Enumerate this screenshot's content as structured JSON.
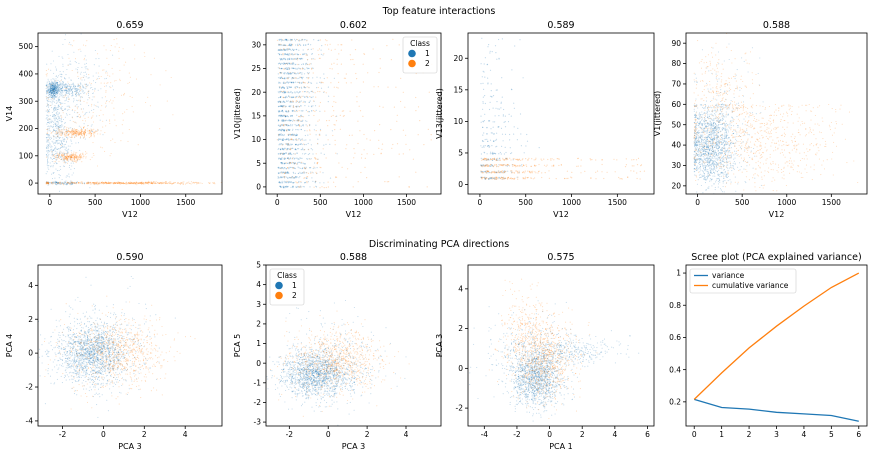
{
  "figure": {
    "row_titles": [
      "Top feature interactions",
      "Discriminating PCA directions"
    ]
  },
  "colors": {
    "class1": "#1f77b4",
    "class2": "#ff7f0e"
  },
  "chart_data": [
    {
      "type": "scatter",
      "title": "0.659",
      "xlabel": "V12",
      "ylabel": "V14",
      "xlim": [
        -130,
        1900
      ],
      "ylim": [
        -40,
        550
      ],
      "xticks": [
        0,
        500,
        1000,
        1500
      ],
      "yticks": [
        0,
        100,
        200,
        300,
        400,
        500
      ],
      "series": [
        {
          "name": "1",
          "cloud": [
            {
              "cx": 40,
              "cy": 345,
              "sx": 30,
              "sy": 15,
              "n": 300
            },
            {
              "cx": 180,
              "cy": 345,
              "sx": 140,
              "sy": 15,
              "n": 280
            },
            {
              "cx": 60,
              "cy": 250,
              "sx": 60,
              "sy": 80,
              "n": 260
            },
            {
              "cx": 100,
              "cy": 130,
              "sx": 100,
              "sy": 60,
              "n": 260
            },
            {
              "cx": 300,
              "cy": 330,
              "sx": 200,
              "sy": 90,
              "n": 220
            },
            {
              "cx": 150,
              "cy": 0,
              "sx": 150,
              "sy": 3,
              "n": 120
            }
          ]
        },
        {
          "name": "2",
          "cloud": [
            {
              "cx": 300,
              "cy": 185,
              "sx": 120,
              "sy": 8,
              "n": 280
            },
            {
              "cx": 230,
              "cy": 95,
              "sx": 90,
              "sy": 8,
              "n": 240
            },
            {
              "cx": 800,
              "cy": 0,
              "sx": 500,
              "sy": 2,
              "n": 520
            },
            {
              "cx": 500,
              "cy": 330,
              "sx": 350,
              "sy": 110,
              "n": 240
            }
          ]
        }
      ]
    },
    {
      "type": "scatter",
      "title": "0.602",
      "xlabel": "V12",
      "ylabel": "V10(jittered)",
      "xlim": [
        -130,
        1900
      ],
      "ylim": [
        -1.5,
        32.5
      ],
      "xticks": [
        0,
        500,
        1000,
        1500
      ],
      "yticks": [
        0,
        5,
        10,
        15,
        20,
        25,
        30
      ],
      "legend": {
        "title": "Class",
        "entries": [
          "1",
          "2"
        ],
        "position": "upper right"
      },
      "series": [
        {
          "name": "1",
          "stripes": {
            "y_min": 0,
            "y_max": 31,
            "step": 1,
            "x_center": 180,
            "x_spread": 200,
            "n_per": 40
          }
        },
        {
          "name": "2",
          "stripes": {
            "y_min": 0,
            "y_max": 31,
            "step": 1,
            "x_center": 700,
            "x_spread": 450,
            "n_per": 14
          }
        }
      ]
    },
    {
      "type": "scatter",
      "title": "0.589",
      "xlabel": "V12",
      "ylabel": "V13(jittered)",
      "xlim": [
        -130,
        1900
      ],
      "ylim": [
        -1.5,
        24
      ],
      "xticks": [
        0,
        500,
        1000,
        1500
      ],
      "yticks": [
        0,
        5,
        10,
        15,
        20
      ],
      "series": [
        {
          "name": "1",
          "stripes": {
            "y_min": 1,
            "y_max": 23,
            "step": 1,
            "x_center": 150,
            "x_spread": 180,
            "n_per": 38,
            "decay": 0.13
          }
        },
        {
          "name": "2",
          "stripes": {
            "y_min": 1,
            "y_max": 4,
            "step": 1,
            "x_center": 450,
            "x_spread": 380,
            "n_per": 90
          }
        }
      ]
    },
    {
      "type": "scatter",
      "title": "0.588",
      "xlabel": "V12",
      "ylabel": "V1(jittered)",
      "xlim": [
        -130,
        1900
      ],
      "ylim": [
        16,
        95
      ],
      "xticks": [
        0,
        500,
        1000,
        1500
      ],
      "yticks": [
        20,
        30,
        40,
        50,
        60,
        70,
        80,
        90
      ],
      "series": [
        {
          "name": "1",
          "cloud": [
            {
              "cx": 150,
              "cy": 40,
              "sx": 130,
              "sy": 10,
              "n": 1300,
              "ymax": 60
            },
            {
              "cx": 300,
              "cy": 55,
              "sx": 200,
              "sy": 15,
              "n": 200
            }
          ]
        },
        {
          "name": "2",
          "cloud": [
            {
              "cx": 700,
              "cy": 42,
              "sx": 450,
              "sy": 11,
              "n": 700,
              "ymax": 60
            },
            {
              "cx": 250,
              "cy": 65,
              "sx": 180,
              "sy": 14,
              "n": 250
            }
          ]
        }
      ]
    },
    {
      "type": "scatter",
      "title": "0.590",
      "xlabel": "PCA 3",
      "ylabel": "PCA 4",
      "xlim": [
        -3.2,
        5.8
      ],
      "ylim": [
        -4.3,
        5.2
      ],
      "xticks": [
        -2,
        0,
        2,
        4
      ],
      "yticks": [
        -4,
        -2,
        0,
        2,
        4
      ],
      "series": [
        {
          "name": "1",
          "cloud": [
            {
              "cx": -0.6,
              "cy": -0.1,
              "sx": 0.85,
              "sy": 0.85,
              "n": 1400
            },
            {
              "cx": 0.0,
              "cy": 0.5,
              "sx": 1.2,
              "sy": 1.5,
              "n": 300
            }
          ]
        },
        {
          "name": "2",
          "cloud": [
            {
              "cx": 0.6,
              "cy": 0.0,
              "sx": 1.2,
              "sy": 1.1,
              "n": 800
            }
          ]
        }
      ]
    },
    {
      "type": "scatter",
      "title": "0.588",
      "xlabel": "PCA 3",
      "ylabel": "PCA 5",
      "xlim": [
        -3.2,
        5.8
      ],
      "ylim": [
        -3.2,
        5.0
      ],
      "xticks": [
        -2,
        0,
        2,
        4
      ],
      "yticks": [
        -3,
        -2,
        -1,
        0,
        1,
        2,
        3,
        4,
        5
      ],
      "legend": {
        "title": "Class",
        "entries": [
          "1",
          "2"
        ],
        "position": "upper left"
      },
      "series": [
        {
          "name": "1",
          "cloud": [
            {
              "cx": -0.6,
              "cy": -0.6,
              "sx": 0.9,
              "sy": 0.6,
              "n": 1400
            },
            {
              "cx": 0.3,
              "cy": 0.2,
              "sx": 1.3,
              "sy": 1.1,
              "n": 300
            }
          ]
        },
        {
          "name": "2",
          "cloud": [
            {
              "cx": 0.5,
              "cy": 0.1,
              "sx": 1.2,
              "sy": 0.8,
              "n": 800
            }
          ]
        }
      ]
    },
    {
      "type": "scatter",
      "title": "0.575",
      "xlabel": "PCA 1",
      "ylabel": "PCA 3",
      "xlim": [
        -5.0,
        6.4
      ],
      "ylim": [
        -2.9,
        5.2
      ],
      "xticks": [
        -4,
        -2,
        0,
        2,
        4,
        6
      ],
      "yticks": [
        -2,
        0,
        2,
        4
      ],
      "series": [
        {
          "name": "1",
          "cloud": [
            {
              "cx": -0.8,
              "cy": -0.4,
              "sx": 0.8,
              "sy": 0.8,
              "n": 1300
            },
            {
              "cx": -1.5,
              "cy": 0.8,
              "sx": 1.3,
              "sy": 1.0,
              "n": 250
            },
            {
              "cx": 1.8,
              "cy": 0.9,
              "sx": 1.3,
              "sy": 0.35,
              "n": 250
            }
          ]
        },
        {
          "name": "2",
          "cloud": [
            {
              "cx": -0.4,
              "cy": 0.5,
              "sx": 1.0,
              "sy": 1.0,
              "n": 800
            },
            {
              "cx": -1.5,
              "cy": 2.2,
              "sx": 0.7,
              "sy": 0.9,
              "n": 200
            }
          ]
        }
      ]
    },
    {
      "type": "line",
      "title": "Scree plot (PCA explained variance)",
      "x": [
        0,
        1,
        2,
        3,
        4,
        5,
        6
      ],
      "xlim": [
        -0.3,
        6.3
      ],
      "ylim": [
        0.05,
        1.05
      ],
      "xticks": [
        0,
        1,
        2,
        3,
        4,
        5,
        6
      ],
      "yticks": [
        0.2,
        0.4,
        0.6,
        0.8,
        1.0
      ],
      "legend": {
        "position": "upper left"
      },
      "series": [
        {
          "name": "variance",
          "values": [
            0.215,
            0.165,
            0.155,
            0.135,
            0.125,
            0.115,
            0.08
          ]
        },
        {
          "name": "cumulative variance",
          "values": [
            0.215,
            0.38,
            0.535,
            0.67,
            0.795,
            0.91,
            1.0
          ]
        }
      ]
    }
  ]
}
